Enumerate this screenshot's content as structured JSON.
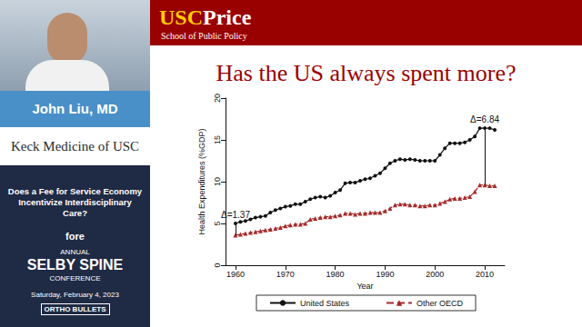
{
  "slide": {
    "logo": [
      "USC",
      "Price"
    ],
    "school": "School of Public Policy",
    "speaker": "John Liu, MD",
    "affiliation": "Keck Medicine of USC",
    "talk_title": "Does a Fee for Service Economy Incentivize Interdisciplinary Care?",
    "sponsor": "fore",
    "conference": [
      "ANNUAL",
      "SELBY SPINE",
      "CONFERENCE"
    ],
    "date": "Saturday, February 4, 2023",
    "organizer": "ORTHO BULLETS"
  },
  "chart_data": {
    "type": "line",
    "title": "Has the US always spent more?",
    "x_label": "Year",
    "y_label": "Health Expenditures (%GDP)",
    "x": [
      1960,
      1961,
      1962,
      1963,
      1964,
      1965,
      1966,
      1967,
      1968,
      1969,
      1970,
      1971,
      1972,
      1973,
      1974,
      1975,
      1976,
      1977,
      1978,
      1979,
      1980,
      1981,
      1982,
      1983,
      1984,
      1985,
      1986,
      1987,
      1988,
      1989,
      1990,
      1991,
      1992,
      1993,
      1994,
      1995,
      1996,
      1997,
      1998,
      1999,
      2000,
      2001,
      2002,
      2003,
      2004,
      2005,
      2006,
      2007,
      2008,
      2009,
      2010,
      2011,
      2012
    ],
    "series": [
      {
        "name": "United States",
        "color": "#111111",
        "marker": "circle",
        "line_style": "solid",
        "values": [
          5.0,
          5.2,
          5.3,
          5.5,
          5.7,
          5.8,
          5.9,
          6.3,
          6.6,
          6.8,
          7.0,
          7.1,
          7.3,
          7.3,
          7.6,
          7.9,
          8.1,
          8.2,
          8.1,
          8.3,
          8.7,
          9.0,
          9.8,
          9.9,
          9.9,
          10.1,
          10.3,
          10.4,
          10.7,
          11.0,
          11.6,
          12.2,
          12.5,
          12.7,
          12.6,
          12.7,
          12.6,
          12.5,
          12.5,
          12.5,
          12.5,
          13.2,
          14.0,
          14.6,
          14.6,
          14.6,
          14.7,
          15.0,
          15.4,
          16.4,
          16.4,
          16.4,
          16.2
        ]
      },
      {
        "name": "Other OECD",
        "color": "#a52a2a",
        "marker": "triangle",
        "line_style": "dashed",
        "values": [
          3.6,
          3.7,
          3.8,
          3.9,
          4.0,
          4.1,
          4.2,
          4.3,
          4.4,
          4.5,
          4.7,
          4.8,
          4.9,
          4.9,
          5.0,
          5.5,
          5.6,
          5.7,
          5.8,
          5.8,
          5.9,
          6.0,
          6.2,
          6.2,
          6.1,
          6.2,
          6.2,
          6.3,
          6.3,
          6.3,
          6.5,
          6.8,
          7.2,
          7.3,
          7.3,
          7.2,
          7.2,
          7.1,
          7.1,
          7.2,
          7.2,
          7.4,
          7.6,
          7.9,
          8.0,
          8.0,
          8.1,
          8.2,
          8.8,
          9.6,
          9.6,
          9.5,
          9.5
        ]
      }
    ],
    "annotations": [
      {
        "text": "Δ=1.37",
        "x": 1960
      },
      {
        "text": "Δ=6.84",
        "x": 2010
      }
    ],
    "xlim": [
      1958,
      2014
    ],
    "xticks": [
      1960,
      1970,
      1980,
      1990,
      2000,
      2010
    ],
    "ylim": [
      0,
      20
    ],
    "yticks": [
      0,
      5,
      10,
      15,
      20
    ],
    "grid": false,
    "legend": "bottom"
  }
}
